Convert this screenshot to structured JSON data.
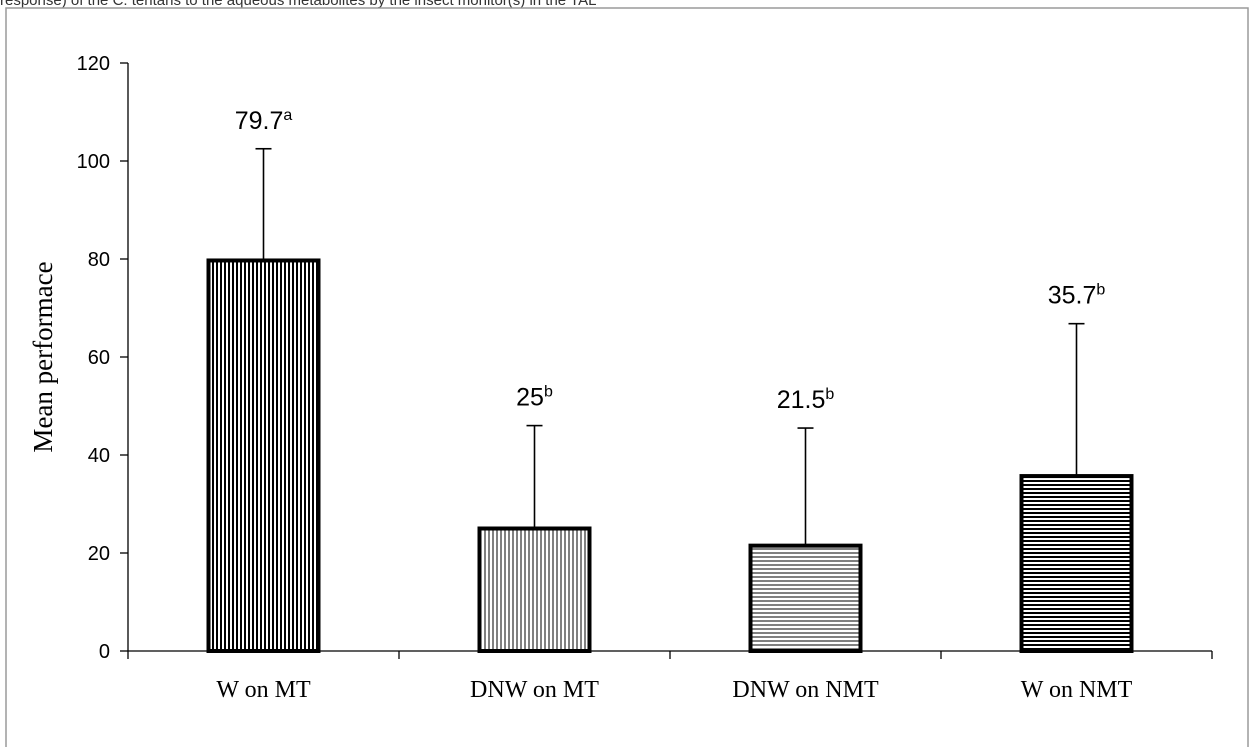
{
  "page": {
    "top_text": "response) of the C. tentans to the aqueous metabolites by the insect monitor(s) in the TAL"
  },
  "colors": {
    "frame": "#9a9a9a",
    "axis": "#000000",
    "bar_fill": "#ffffff",
    "bar_stroke": "#000000",
    "pattern_line": "#000000"
  },
  "chart_data": {
    "type": "bar",
    "title": "",
    "xlabel": "",
    "ylabel": "Mean performace",
    "ylim": [
      0,
      120
    ],
    "yticks": [
      "0",
      "20",
      "40",
      "60",
      "80",
      "100",
      "120"
    ],
    "grid": false,
    "legend": "none",
    "categories": [
      "W on MT",
      "DNW on MT",
      "DNW on NMT",
      "W on NMT"
    ],
    "values": [
      79.7,
      25,
      21.5,
      35.7
    ],
    "error_upper": [
      102.5,
      46,
      45.5,
      66.8
    ],
    "patterns": [
      "vertical-dense",
      "vertical-fine",
      "horizontal-fine",
      "horizontal-dense"
    ],
    "labels": [
      {
        "value": "79.7",
        "sup": "a"
      },
      {
        "value": "25",
        "sup": "b"
      },
      {
        "value": "21.5",
        "sup": "b"
      },
      {
        "value": "35.7",
        "sup": "b"
      }
    ]
  }
}
